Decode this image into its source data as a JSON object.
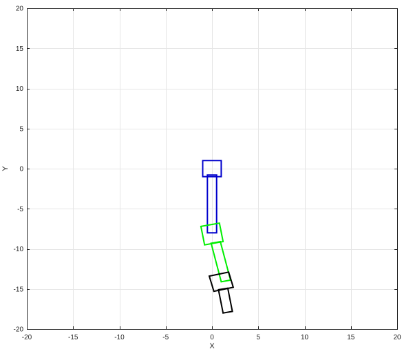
{
  "chart_data": {
    "type": "line",
    "title": "",
    "xlabel": "X",
    "ylabel": "Y",
    "xlim": [
      -20,
      20
    ],
    "ylim": [
      -20,
      20
    ],
    "xticks": [
      -20,
      -15,
      -10,
      -5,
      0,
      5,
      10,
      15,
      20
    ],
    "yticks": [
      -20,
      -15,
      -10,
      -5,
      0,
      5,
      10,
      15,
      20
    ],
    "grid": true,
    "series": [
      {
        "color": "#0000cc",
        "polygons": [
          [
            [
              -1,
              1
            ],
            [
              1,
              1
            ],
            [
              1,
              -1
            ],
            [
              -1,
              -1
            ]
          ],
          [
            [
              -0.5,
              -0.8
            ],
            [
              0.5,
              -0.8
            ],
            [
              0.5,
              -8
            ],
            [
              -0.5,
              -8
            ]
          ]
        ]
      },
      {
        "color": "#00ee00",
        "polygons": [
          [
            [
              -1.2,
              -7.2
            ],
            [
              0.8,
              -6.8
            ],
            [
              1.2,
              -9.1
            ],
            [
              -0.8,
              -9.5
            ]
          ],
          [
            [
              -0.1,
              -9.3
            ],
            [
              0.9,
              -9.1
            ],
            [
              2.0,
              -13.9
            ],
            [
              1.0,
              -14.1
            ]
          ]
        ]
      },
      {
        "color": "#000000",
        "polygons": [
          [
            [
              -0.3,
              -13.4
            ],
            [
              1.8,
              -12.9
            ],
            [
              2.3,
              -14.8
            ],
            [
              0.2,
              -15.3
            ]
          ],
          [
            [
              0.7,
              -15.1
            ],
            [
              1.7,
              -14.9
            ],
            [
              2.2,
              -17.8
            ],
            [
              1.2,
              -18.0
            ]
          ]
        ]
      }
    ]
  }
}
